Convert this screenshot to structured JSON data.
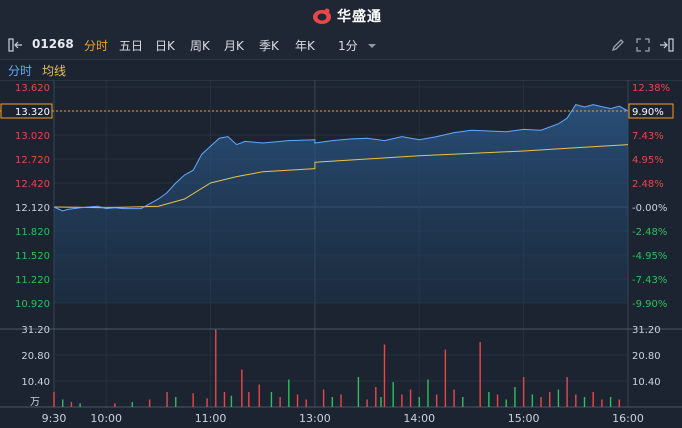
{
  "app": {
    "brand_name": "华盛通"
  },
  "toolbar": {
    "stock_code": "01268",
    "tabs": [
      {
        "label": "分时",
        "active": true
      },
      {
        "label": "五日",
        "active": false
      },
      {
        "label": "日K",
        "active": false
      },
      {
        "label": "周K",
        "active": false
      },
      {
        "label": "月K",
        "active": false
      },
      {
        "label": "季K",
        "active": false
      },
      {
        "label": "年K",
        "active": false
      }
    ],
    "interval_select": "1分"
  },
  "subbar": {
    "intraday_label": "分时",
    "avg_label": "均线"
  },
  "colors": {
    "up": "#e8474a",
    "down": "#2fbf5b",
    "price_line": "#63a9ff",
    "avg_line": "#e9c24b",
    "accent": "#f0a030"
  },
  "chart_data": {
    "type": "line",
    "price_axis": {
      "ticks": [
        "13.620",
        "13.320",
        "13.020",
        "12.720",
        "12.420",
        "12.120",
        "11.820",
        "11.520",
        "11.220",
        "10.920"
      ],
      "values": [
        13.62,
        13.32,
        13.02,
        12.72,
        12.42,
        12.12,
        11.82,
        11.52,
        11.22,
        10.92
      ],
      "ylim": [
        10.92,
        13.62
      ],
      "prev_close": 12.12
    },
    "pct_axis": {
      "ticks": [
        "12.38%",
        "9.90%",
        "7.43%",
        "4.95%",
        "2.48%",
        "-0.00%",
        "-2.48%",
        "-4.95%",
        "-7.43%",
        "-9.90%"
      ]
    },
    "current_price": "13.320",
    "current_pct": "9.90%",
    "time_axis": [
      "9:30",
      "10:00",
      "11:00",
      "13:00",
      "14:00",
      "15:00",
      "16:00"
    ],
    "series": [
      {
        "x": [
          "9:30",
          "9:35",
          "9:38",
          "9:45",
          "9:55",
          "10:00",
          "10:05",
          "10:10",
          "10:20",
          "10:30",
          "10:35",
          "10:40",
          "10:45",
          "10:50",
          "10:55",
          "11:00",
          "11:05",
          "11:10",
          "11:15",
          "11:20",
          "11:30",
          "11:45",
          "12:00",
          "13:00",
          "13:10",
          "13:20",
          "13:30",
          "13:40",
          "13:50",
          "14:00",
          "14:10",
          "14:20",
          "14:30",
          "14:40",
          "14:50",
          "15:00",
          "15:10",
          "15:20",
          "15:25",
          "15:30",
          "15:35",
          "15:40",
          "15:50",
          "15:55",
          "16:00"
        ],
        "values": [
          12.12,
          12.07,
          12.09,
          12.11,
          12.13,
          12.1,
          12.11,
          12.1,
          12.1,
          12.22,
          12.3,
          12.42,
          12.52,
          12.58,
          12.78,
          12.88,
          12.98,
          13.0,
          12.9,
          12.94,
          12.92,
          12.95,
          12.96,
          12.92,
          12.95,
          12.97,
          12.98,
          12.95,
          13.0,
          12.96,
          13.0,
          13.05,
          13.08,
          13.07,
          13.06,
          13.09,
          13.08,
          13.16,
          13.23,
          13.4,
          13.37,
          13.4,
          13.35,
          13.38,
          13.32
        ]
      },
      {
        "x": [
          "9:30",
          "10:00",
          "10:30",
          "10:45",
          "11:00",
          "11:15",
          "11:30",
          "12:00",
          "13:00",
          "13:30",
          "14:00",
          "14:30",
          "15:00",
          "15:30",
          "16:00"
        ],
        "values": [
          12.12,
          12.11,
          12.13,
          12.22,
          12.42,
          12.5,
          12.56,
          12.6,
          12.68,
          12.72,
          12.76,
          12.79,
          12.82,
          12.86,
          12.9
        ]
      }
    ],
    "volume": {
      "axis_ticks": [
        "31.20",
        "20.80",
        "10.40"
      ],
      "unit": "万",
      "ylim": [
        0,
        31.2
      ],
      "bars": [
        {
          "t": "9:30",
          "v": 6.0,
          "up": true
        },
        {
          "t": "9:35",
          "v": 3.0,
          "up": false
        },
        {
          "t": "9:40",
          "v": 2.0,
          "up": true
        },
        {
          "t": "9:45",
          "v": 1.5,
          "up": false
        },
        {
          "t": "10:05",
          "v": 1.5,
          "up": true
        },
        {
          "t": "10:15",
          "v": 2.0,
          "up": false
        },
        {
          "t": "10:25",
          "v": 3.0,
          "up": true
        },
        {
          "t": "10:35",
          "v": 6.0,
          "up": true
        },
        {
          "t": "10:40",
          "v": 4.0,
          "up": false
        },
        {
          "t": "10:50",
          "v": 5.5,
          "up": true
        },
        {
          "t": "10:58",
          "v": 3.5,
          "up": true
        },
        {
          "t": "11:03",
          "v": 31.0,
          "up": true
        },
        {
          "t": "11:08",
          "v": 6.0,
          "up": true
        },
        {
          "t": "11:12",
          "v": 4.5,
          "up": false
        },
        {
          "t": "11:18",
          "v": 15.0,
          "up": true
        },
        {
          "t": "11:22",
          "v": 6.0,
          "up": true
        },
        {
          "t": "11:28",
          "v": 9.0,
          "up": true
        },
        {
          "t": "11:35",
          "v": 6.0,
          "up": false
        },
        {
          "t": "11:40",
          "v": 4.0,
          "up": true
        },
        {
          "t": "11:45",
          "v": 11.0,
          "up": false
        },
        {
          "t": "11:50",
          "v": 5.0,
          "up": true
        },
        {
          "t": "11:55",
          "v": 3.0,
          "up": true
        },
        {
          "t": "13:05",
          "v": 7.0,
          "up": true
        },
        {
          "t": "13:10",
          "v": 4.0,
          "up": false
        },
        {
          "t": "13:15",
          "v": 5.0,
          "up": true
        },
        {
          "t": "13:25",
          "v": 12.0,
          "up": false
        },
        {
          "t": "13:30",
          "v": 3.0,
          "up": true
        },
        {
          "t": "13:35",
          "v": 8.0,
          "up": true
        },
        {
          "t": "13:38",
          "v": 4.0,
          "up": false
        },
        {
          "t": "13:40",
          "v": 25.0,
          "up": true
        },
        {
          "t": "13:45",
          "v": 10.0,
          "up": false
        },
        {
          "t": "13:50",
          "v": 5.0,
          "up": true
        },
        {
          "t": "13:55",
          "v": 7.0,
          "up": true
        },
        {
          "t": "14:00",
          "v": 4.0,
          "up": false
        },
        {
          "t": "14:05",
          "v": 11.0,
          "up": false
        },
        {
          "t": "14:10",
          "v": 5.0,
          "up": true
        },
        {
          "t": "14:15",
          "v": 23.0,
          "up": true
        },
        {
          "t": "14:20",
          "v": 7.0,
          "up": true
        },
        {
          "t": "14:25",
          "v": 4.0,
          "up": false
        },
        {
          "t": "14:35",
          "v": 26.0,
          "up": true
        },
        {
          "t": "14:40",
          "v": 6.0,
          "up": false
        },
        {
          "t": "14:45",
          "v": 5.0,
          "up": true
        },
        {
          "t": "14:50",
          "v": 3.0,
          "up": false
        },
        {
          "t": "14:55",
          "v": 8.0,
          "up": false
        },
        {
          "t": "15:00",
          "v": 12.0,
          "up": true
        },
        {
          "t": "15:05",
          "v": 5.0,
          "up": false
        },
        {
          "t": "15:10",
          "v": 4.0,
          "up": true
        },
        {
          "t": "15:15",
          "v": 6.0,
          "up": true
        },
        {
          "t": "15:20",
          "v": 7.0,
          "up": false
        },
        {
          "t": "15:25",
          "v": 12.0,
          "up": true
        },
        {
          "t": "15:30",
          "v": 5.0,
          "up": true
        },
        {
          "t": "15:35",
          "v": 4.0,
          "up": false
        },
        {
          "t": "15:40",
          "v": 6.0,
          "up": true
        },
        {
          "t": "15:45",
          "v": 3.0,
          "up": true
        },
        {
          "t": "15:50",
          "v": 4.0,
          "up": false
        },
        {
          "t": "15:55",
          "v": 3.0,
          "up": true
        }
      ]
    }
  }
}
